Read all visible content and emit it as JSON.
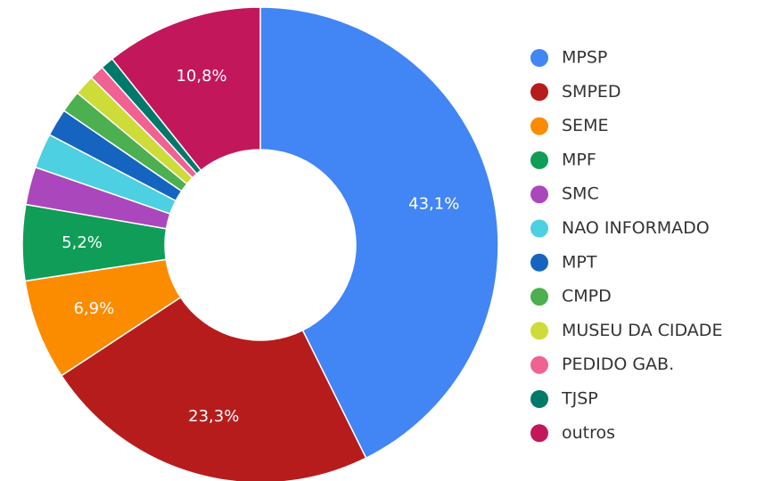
{
  "chart_data": {
    "type": "donut",
    "categories": [
      "MPSP",
      "SMPED",
      "SEME",
      "MPF",
      "SMC",
      "NAO INFORMADO",
      "MPT",
      "CMPD",
      "MUSEU DA CIDADE",
      "PEDIDO GAB.",
      "TJSP",
      "outros"
    ],
    "values": [
      43.1,
      23.3,
      6.9,
      5.2,
      2.6,
      2.4,
      1.9,
      1.5,
      1.4,
      1.0,
      0.9,
      10.8
    ],
    "value_labels": [
      "43,1%",
      "23,3%",
      "6,9%",
      "5,2%",
      null,
      null,
      null,
      null,
      null,
      null,
      null,
      "10,8%"
    ],
    "colors": [
      "#4285f4",
      "#b71c1c",
      "#fb8c00",
      "#0f9d58",
      "#ab47bc",
      "#4dd0e1",
      "#1565c0",
      "#4caf50",
      "#cddc39",
      "#f06292",
      "#00796b",
      "#c2185b"
    ],
    "legend": "right"
  }
}
